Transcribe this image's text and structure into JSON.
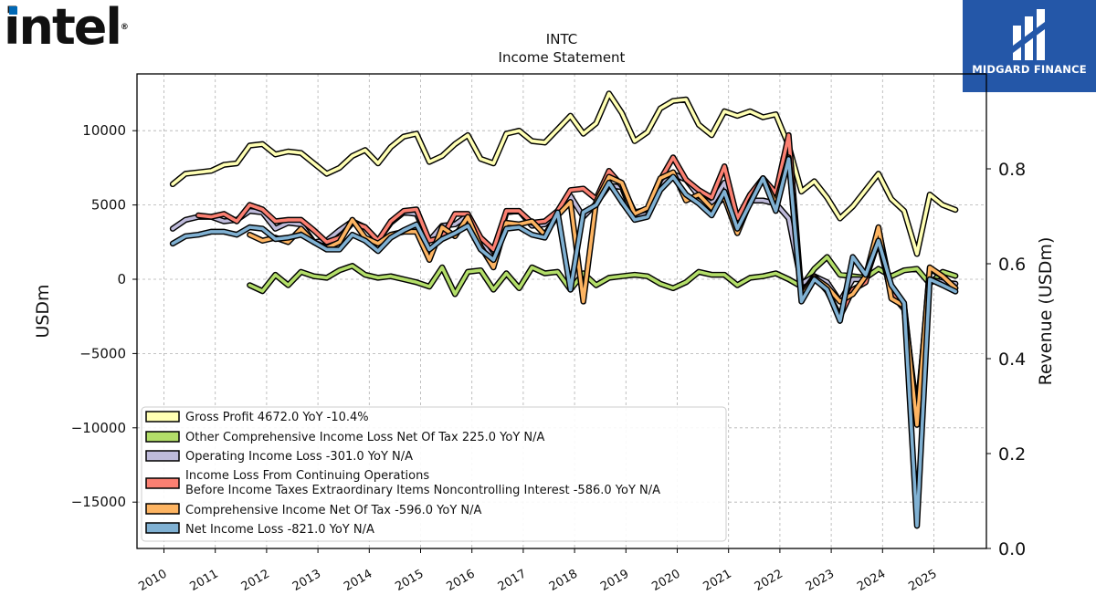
{
  "header": {
    "left_logo": "intel",
    "right_logo": "MIDGARD FINANCE"
  },
  "chart_data": {
    "type": "line",
    "title": "INTC",
    "subtitle": "Income Statement",
    "ylabel": "USDm",
    "ylabel_right": "Revenue (USDm)",
    "ylim": [
      -18000,
      14000
    ],
    "ylim_right": [
      0.0,
      1.0
    ],
    "y_ticks": [
      10000,
      5000,
      0,
      -5000,
      -10000,
      -15000
    ],
    "y_tick_labels": [
      "10000",
      "5000",
      "0",
      "−5000",
      "−10000",
      "−15000"
    ],
    "y_ticks_right": [
      0.0,
      0.2,
      0.4,
      0.6,
      0.8
    ],
    "y_tick_labels_right": [
      "0.0",
      "0.2",
      "0.4",
      "0.6",
      "0.8"
    ],
    "x_ticks": [
      2010,
      2011,
      2012,
      2013,
      2014,
      2015,
      2016,
      2017,
      2018,
      2019,
      2020,
      2021,
      2022,
      2023,
      2024,
      2025
    ],
    "xlim": [
      2009.5,
      2026.0
    ],
    "grid": true,
    "legend_position": "lower-left",
    "series": [
      {
        "name": "Gross Profit",
        "legend": "Gross Profit  4672.0 YoY -10.4%",
        "color": "#ffffb3",
        "x": [
          2010.17,
          2010.42,
          2010.67,
          2010.92,
          2011.17,
          2011.42,
          2011.67,
          2011.92,
          2012.17,
          2012.42,
          2012.67,
          2012.92,
          2013.17,
          2013.42,
          2013.67,
          2013.92,
          2014.17,
          2014.42,
          2014.67,
          2014.92,
          2015.17,
          2015.42,
          2015.67,
          2015.92,
          2016.17,
          2016.42,
          2016.67,
          2016.92,
          2017.17,
          2017.42,
          2017.67,
          2017.92,
          2018.17,
          2018.42,
          2018.67,
          2018.92,
          2019.17,
          2019.42,
          2019.67,
          2019.92,
          2020.17,
          2020.42,
          2020.67,
          2020.92,
          2021.17,
          2021.42,
          2021.67,
          2021.92,
          2022.17,
          2022.42,
          2022.67,
          2022.92,
          2023.17,
          2023.42,
          2023.67,
          2023.92,
          2024.17,
          2024.42,
          2024.67,
          2024.92,
          2025.17,
          2025.42
        ],
        "values": [
          6400,
          7100,
          7200,
          7300,
          7700,
          7800,
          9000,
          9100,
          8400,
          8600,
          8500,
          7800,
          7100,
          7500,
          8300,
          8700,
          7800,
          8900,
          9600,
          9800,
          7900,
          8300,
          9100,
          9700,
          8100,
          7800,
          9800,
          10000,
          9300,
          9200,
          10100,
          11000,
          9800,
          10500,
          12500,
          11200,
          9300,
          9900,
          11500,
          12000,
          12100,
          10400,
          9700,
          11300,
          11000,
          11300,
          10900,
          11100,
          9000,
          5900,
          6600,
          5500,
          4100,
          4900,
          6000,
          7100,
          5400,
          4600,
          1700,
          5700,
          5000,
          4672
        ]
      },
      {
        "name": "Other Comprehensive Income Loss Net Of Tax",
        "legend": "Other Comprehensive Income Loss Net Of Tax  225.0 YoY N/A",
        "color": "#b3de69",
        "x": [
          2011.67,
          2011.92,
          2012.17,
          2012.42,
          2012.67,
          2012.92,
          2013.17,
          2013.42,
          2013.67,
          2013.92,
          2014.17,
          2014.42,
          2014.67,
          2014.92,
          2015.17,
          2015.42,
          2015.67,
          2015.92,
          2016.17,
          2016.42,
          2016.67,
          2016.92,
          2017.17,
          2017.42,
          2017.67,
          2017.92,
          2018.17,
          2018.42,
          2018.67,
          2018.92,
          2019.17,
          2019.42,
          2019.67,
          2019.92,
          2020.17,
          2020.42,
          2020.67,
          2020.92,
          2021.17,
          2021.42,
          2021.67,
          2021.92,
          2022.17,
          2022.42,
          2022.67,
          2022.92,
          2023.17,
          2023.42,
          2023.67,
          2023.92,
          2024.17,
          2024.42,
          2024.67,
          2024.92,
          2025.17,
          2025.42
        ],
        "values": [
          -400,
          -800,
          300,
          -400,
          500,
          200,
          100,
          600,
          900,
          300,
          100,
          200,
          0,
          -200,
          -500,
          800,
          -1000,
          500,
          600,
          -700,
          400,
          -600,
          800,
          400,
          500,
          -700,
          400,
          -400,
          100,
          200,
          300,
          200,
          -300,
          -600,
          -200,
          500,
          300,
          300,
          -400,
          100,
          200,
          400,
          0,
          -500,
          700,
          1500,
          300,
          200,
          100,
          700,
          200,
          600,
          700,
          -300,
          500,
          225
        ]
      },
      {
        "name": "Operating Income Loss",
        "legend": "Operating Income Loss  -301.0 YoY N/A",
        "color": "#bebada",
        "x": [
          2010.17,
          2010.42,
          2010.67,
          2010.92,
          2011.17,
          2011.42,
          2011.67,
          2011.92,
          2012.17,
          2012.42,
          2012.67,
          2012.92,
          2013.17,
          2013.42,
          2013.67,
          2013.92,
          2014.17,
          2014.42,
          2014.67,
          2014.92,
          2015.17,
          2015.42,
          2015.67,
          2015.92,
          2016.17,
          2016.42,
          2016.67,
          2016.92,
          2017.17,
          2017.42,
          2017.67,
          2017.92,
          2018.17,
          2018.42,
          2018.67,
          2018.92,
          2019.17,
          2019.42,
          2019.67,
          2019.92,
          2020.17,
          2020.42,
          2020.67,
          2020.92,
          2021.17,
          2021.42,
          2021.67,
          2021.92,
          2022.17,
          2022.42,
          2022.67,
          2022.92,
          2023.17,
          2023.42,
          2023.67,
          2023.92,
          2024.17,
          2024.42,
          2024.67,
          2024.92,
          2025.17,
          2025.42
        ],
        "values": [
          3400,
          4000,
          4200,
          4200,
          3900,
          4000,
          4600,
          4500,
          3400,
          3800,
          3700,
          2500,
          2600,
          3300,
          3900,
          3500,
          2600,
          3800,
          4500,
          4400,
          2600,
          3600,
          3700,
          4300,
          2600,
          1300,
          4500,
          4600,
          3600,
          3700,
          4600,
          5600,
          4200,
          5100,
          6300,
          6200,
          4100,
          4600,
          6300,
          7100,
          6700,
          5600,
          5100,
          6500,
          3800,
          5300,
          5300,
          5100,
          4100,
          -300,
          200,
          -200,
          -1500,
          0,
          0,
          2600,
          -1000,
          -2000,
          -9000,
          0,
          -200,
          -301
        ]
      },
      {
        "name": "Income Loss From Continuing Operations Before Income Taxes Extraordinary Items Noncontrolling Interest",
        "legend_line1": "Income Loss From Continuing Operations",
        "legend_line2": "Before Income Taxes Extraordinary Items Noncontrolling Interest  -586.0 YoY N/A",
        "color": "#fb8072",
        "x": [
          2010.67,
          2010.92,
          2011.17,
          2011.42,
          2011.67,
          2011.92,
          2012.17,
          2012.42,
          2012.67,
          2012.92,
          2013.17,
          2013.42,
          2013.67,
          2013.92,
          2014.17,
          2014.42,
          2014.67,
          2014.92,
          2015.17,
          2015.42,
          2015.67,
          2015.92,
          2016.17,
          2016.42,
          2016.67,
          2016.92,
          2017.17,
          2017.42,
          2017.67,
          2017.92,
          2018.17,
          2018.42,
          2018.67,
          2018.92,
          2019.17,
          2019.42,
          2019.67,
          2019.92,
          2020.17,
          2020.42,
          2020.67,
          2020.92,
          2021.17,
          2021.42,
          2021.67,
          2021.92,
          2022.17,
          2022.42,
          2022.67,
          2022.92,
          2023.17,
          2023.42,
          2023.67,
          2023.92,
          2024.17,
          2024.42,
          2024.67,
          2024.92,
          2025.17,
          2025.42
        ],
        "values": [
          4300,
          4200,
          4400,
          3900,
          5000,
          4700,
          3900,
          4000,
          4000,
          3300,
          2500,
          2800,
          3800,
          3500,
          2600,
          3900,
          4600,
          4700,
          2600,
          2800,
          4400,
          4400,
          2800,
          2000,
          4600,
          4600,
          3800,
          3900,
          4600,
          6000,
          6100,
          5400,
          7300,
          6300,
          4500,
          4700,
          6700,
          8200,
          6700,
          6000,
          5500,
          7600,
          4100,
          5700,
          6800,
          5800,
          9700,
          -1000,
          200,
          -800,
          -2500,
          -700,
          -200,
          3400,
          -800,
          -1700,
          -9500,
          700,
          200,
          -586
        ]
      },
      {
        "name": "Comprehensive Income Net Of Tax",
        "legend": "Comprehensive Income Net Of Tax  -596.0 YoY N/A",
        "color": "#fdb462",
        "x": [
          2011.67,
          2011.92,
          2012.17,
          2012.42,
          2012.67,
          2012.92,
          2013.17,
          2013.42,
          2013.67,
          2013.92,
          2014.17,
          2014.42,
          2014.67,
          2014.92,
          2015.17,
          2015.42,
          2015.67,
          2015.92,
          2016.17,
          2016.42,
          2016.67,
          2016.92,
          2017.17,
          2017.42,
          2017.67,
          2017.92,
          2018.17,
          2018.42,
          2018.67,
          2018.92,
          2019.17,
          2019.42,
          2019.67,
          2019.92,
          2020.17,
          2020.42,
          2020.67,
          2020.92,
          2021.17,
          2021.42,
          2021.67,
          2021.92,
          2022.17,
          2022.42,
          2022.67,
          2022.92,
          2023.17,
          2023.42,
          2023.67,
          2023.92,
          2024.17,
          2024.42,
          2024.67,
          2024.92,
          2025.17,
          2025.42
        ],
        "values": [
          3000,
          2600,
          2800,
          2500,
          3400,
          2500,
          2100,
          2500,
          4000,
          2800,
          2400,
          3000,
          3200,
          3200,
          1300,
          3500,
          2900,
          4200,
          2200,
          800,
          3800,
          3700,
          3900,
          3000,
          4300,
          5200,
          -1500,
          5200,
          6900,
          6500,
          4400,
          4800,
          6800,
          7200,
          5300,
          5700,
          4800,
          5500,
          3100,
          5200,
          6800,
          5100,
          8200,
          -1200,
          100,
          -500,
          -1500,
          -1000,
          200,
          3500,
          -1300,
          -1800,
          -9800,
          800,
          200,
          -596
        ]
      },
      {
        "name": "Net Income Loss",
        "legend": "Net Income Loss  -821.0 YoY N/A",
        "color": "#80b1d3",
        "x": [
          2010.17,
          2010.42,
          2010.67,
          2010.92,
          2011.17,
          2011.42,
          2011.67,
          2011.92,
          2012.17,
          2012.42,
          2012.67,
          2012.92,
          2013.17,
          2013.42,
          2013.67,
          2013.92,
          2014.17,
          2014.42,
          2014.67,
          2014.92,
          2015.17,
          2015.42,
          2015.67,
          2015.92,
          2016.17,
          2016.42,
          2016.67,
          2016.92,
          2017.17,
          2017.42,
          2017.67,
          2017.92,
          2018.17,
          2018.42,
          2018.67,
          2018.92,
          2019.17,
          2019.42,
          2019.67,
          2019.92,
          2020.17,
          2020.42,
          2020.67,
          2020.92,
          2021.17,
          2021.42,
          2021.67,
          2021.92,
          2022.17,
          2022.42,
          2022.67,
          2022.92,
          2023.17,
          2023.42,
          2023.67,
          2023.92,
          2024.17,
          2024.42,
          2024.67,
          2024.92,
          2025.17,
          2025.42
        ],
        "values": [
          2400,
          2900,
          3000,
          3200,
          3200,
          3000,
          3500,
          3400,
          2700,
          2800,
          3000,
          2500,
          2000,
          2000,
          3000,
          2600,
          1900,
          2800,
          3300,
          3700,
          2000,
          2700,
          3100,
          3600,
          2000,
          1300,
          3400,
          3500,
          3000,
          2800,
          4500,
          -700,
          4500,
          5000,
          6500,
          5200,
          4000,
          4200,
          6000,
          6900,
          5700,
          5100,
          4300,
          5900,
          3400,
          5100,
          6800,
          4600,
          8100,
          -1500,
          0,
          -700,
          -2800,
          1500,
          300,
          2600,
          -400,
          -1600,
          -16600,
          0,
          -400,
          -821
        ]
      }
    ]
  }
}
